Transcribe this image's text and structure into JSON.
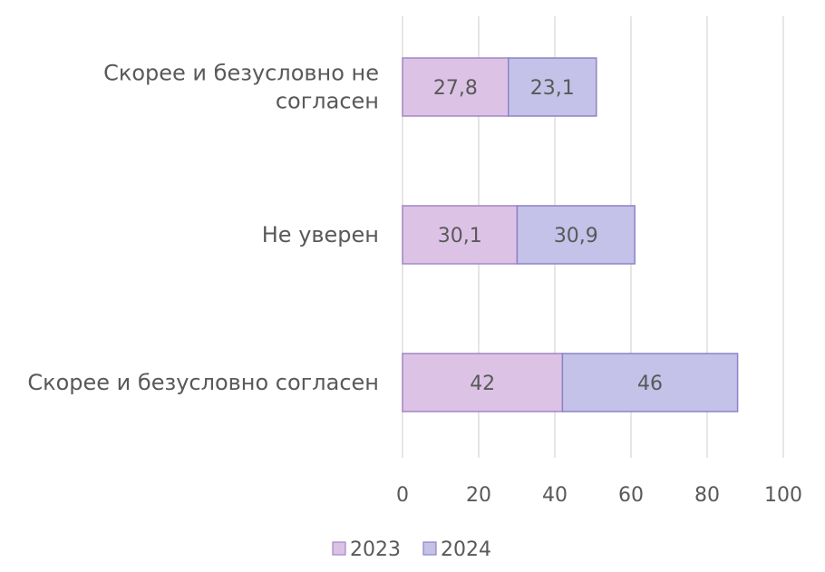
{
  "chart_data": {
    "type": "bar",
    "orientation": "horizontal",
    "stacked": true,
    "categories": [
      "Скорее и безусловно не согласен",
      "Не уверен",
      "Скорее и безусловно согласен"
    ],
    "category_lines": [
      [
        "Скорее и безусловно не",
        "согласен"
      ],
      [
        "Не уверен"
      ],
      [
        "Скорее и безусловно согласен"
      ]
    ],
    "series": [
      {
        "name": "2023",
        "values": [
          27.8,
          30.1,
          42
        ],
        "labels": [
          "27,8",
          "30,1",
          "42"
        ],
        "color": "#dcc3e6",
        "stroke": "#a486c4"
      },
      {
        "name": "2024",
        "values": [
          23.1,
          30.9,
          46
        ],
        "labels": [
          "23,1",
          "30,9",
          "46"
        ],
        "color": "#c4c2e8",
        "stroke": "#8e82c8"
      }
    ],
    "xlim": [
      0,
      100
    ],
    "xticks": [
      "0",
      "20",
      "40",
      "60",
      "80",
      "100"
    ],
    "grid": true,
    "legend_position": "bottom",
    "gridline_color": "#d9d9d9"
  }
}
